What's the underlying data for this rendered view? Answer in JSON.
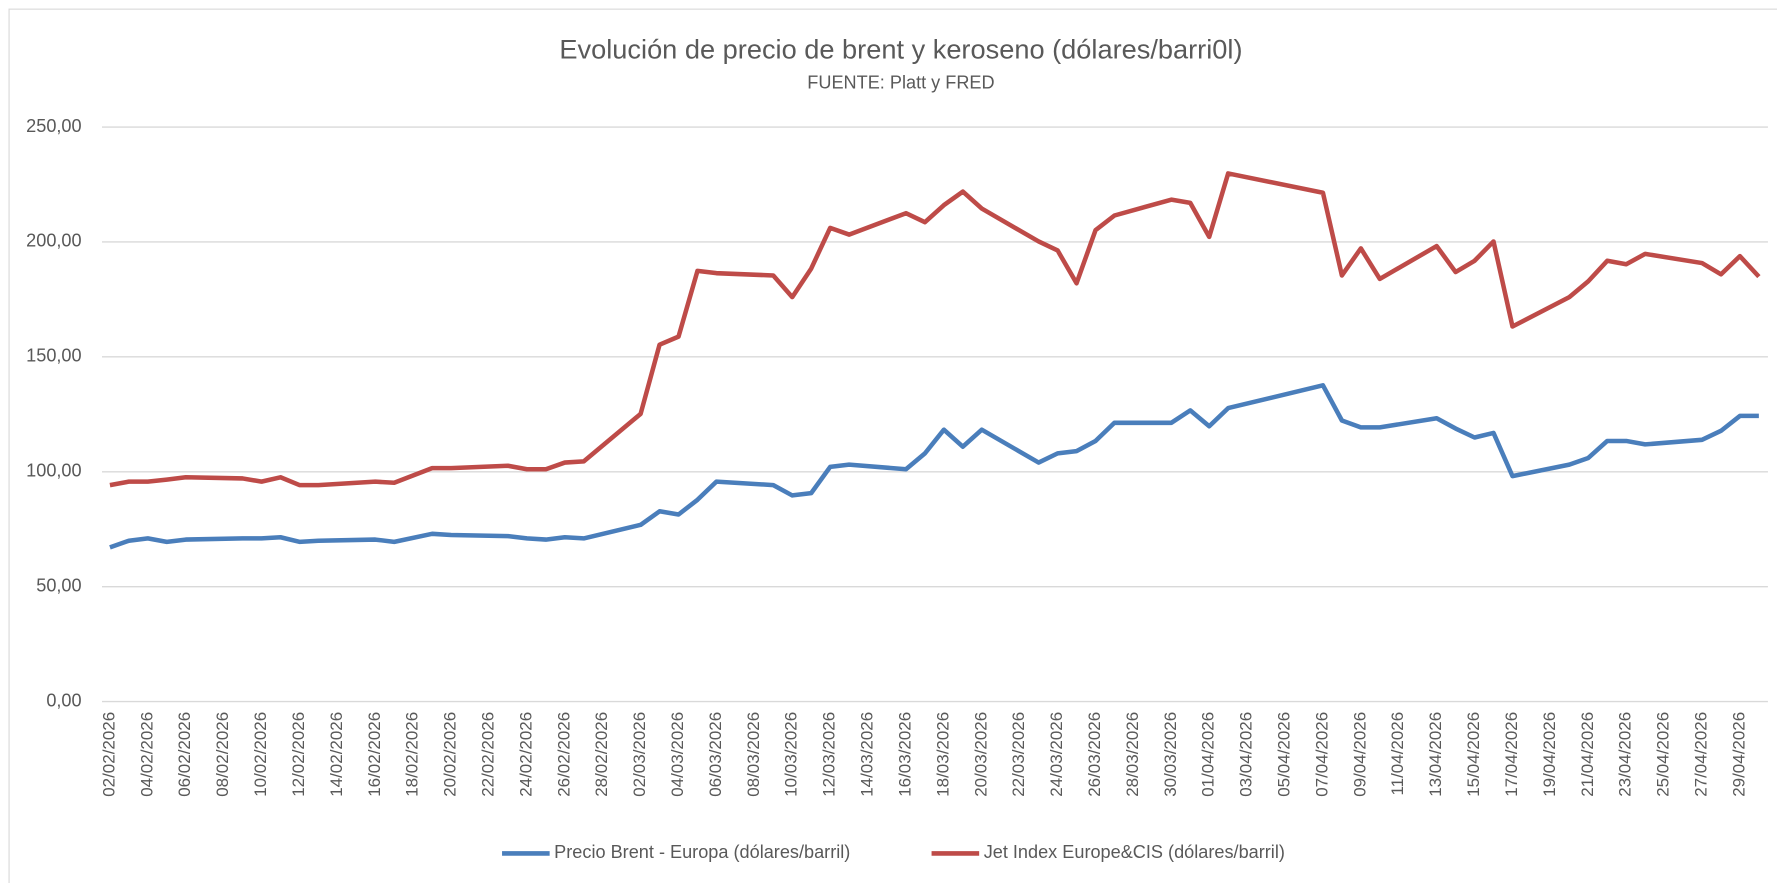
{
  "chart_data": {
    "type": "line",
    "title": "Evolución de precio de brent y keroseno (dólares/barri0l)",
    "subtitle": "FUENTE: Platt y FRED",
    "x": [
      "02/02/2026",
      "03/02/2026",
      "04/02/2026",
      "05/02/2026",
      "06/02/2026",
      "09/02/2026",
      "10/02/2026",
      "11/02/2026",
      "12/02/2026",
      "13/02/2026",
      "16/02/2026",
      "17/02/2026",
      "19/02/2026",
      "20/02/2026",
      "23/02/2026",
      "24/02/2026",
      "25/02/2026",
      "26/02/2026",
      "27/02/2026",
      "02/03/2026",
      "03/03/2026",
      "04/03/2026",
      "05/03/2026",
      "06/03/2026",
      "09/03/2026",
      "10/03/2026",
      "11/03/2026",
      "12/03/2026",
      "13/03/2026",
      "16/03/2026",
      "17/03/2026",
      "18/03/2026",
      "19/03/2026",
      "20/03/2026",
      "23/03/2026",
      "24/03/2026",
      "25/03/2026",
      "26/03/2026",
      "27/03/2026",
      "30/03/2026",
      "31/03/2026",
      "01/04/2026",
      "02/04/2026",
      "07/04/2026",
      "08/04/2026",
      "09/04/2026",
      "10/04/2026",
      "13/04/2026",
      "14/04/2026",
      "15/04/2026",
      "16/04/2026",
      "17/04/2026",
      "20/04/2026",
      "21/04/2026",
      "22/04/2026",
      "23/04/2026",
      "24/04/2026",
      "27/04/2026",
      "28/04/2026",
      "29/04/2026",
      "30/04/2026"
    ],
    "series": [
      {
        "name": "Precio Brent - Europa (dólares/barril)",
        "color": "#4a7ebb",
        "values": [
          67.1,
          70.0,
          71.0,
          69.5,
          70.5,
          71.0,
          71.0,
          71.5,
          69.5,
          70.0,
          70.5,
          69.5,
          73.0,
          72.5,
          72.0,
          71.0,
          70.5,
          71.5,
          71.0,
          76.9,
          82.8,
          81.4,
          87.8,
          95.7,
          94.2,
          89.7,
          90.7,
          102.1,
          103.1,
          101.1,
          108.0,
          118.3,
          110.9,
          118.3,
          104.0,
          108.0,
          109.0,
          113.4,
          121.3,
          121.3,
          126.7,
          119.8,
          127.7,
          137.6,
          122.3,
          119.3,
          119.3,
          123.3,
          118.8,
          114.9,
          116.9,
          98.1,
          103.1,
          106.0,
          113.4,
          113.4,
          111.9,
          113.9,
          117.8,
          124.3,
          124.3
        ]
      },
      {
        "name": "Jet Index Europe&CIS (dólares/barril)",
        "color": "#be4b48",
        "values": [
          94.2,
          95.7,
          95.7,
          96.6,
          97.6,
          97.1,
          95.7,
          97.6,
          94.2,
          94.2,
          95.7,
          95.2,
          101.6,
          101.6,
          102.6,
          101.1,
          101.1,
          104.0,
          104.5,
          125.2,
          155.3,
          158.8,
          187.4,
          186.4,
          185.4,
          176.0,
          188.4,
          206.1,
          203.2,
          212.5,
          208.6,
          216.0,
          221.9,
          214.5,
          200.2,
          196.3,
          182.0,
          205.1,
          211.5,
          218.4,
          217.0,
          202.2,
          229.8,
          221.4,
          185.4,
          197.2,
          183.9,
          198.2,
          186.9,
          191.8,
          200.2,
          163.2,
          176.0,
          182.9,
          191.8,
          190.3,
          194.8,
          190.8,
          185.9,
          193.8,
          184.9
        ]
      }
    ],
    "xticks": [
      "02/02/2026",
      "04/02/2026",
      "06/02/2026",
      "08/02/2026",
      "10/02/2026",
      "12/02/2026",
      "14/02/2026",
      "16/02/2026",
      "18/02/2026",
      "20/02/2026",
      "22/02/2026",
      "24/02/2026",
      "26/02/2026",
      "28/02/2026",
      "02/03/2026",
      "04/03/2026",
      "06/03/2026",
      "08/03/2026",
      "10/03/2026",
      "12/03/2026",
      "14/03/2026",
      "16/03/2026",
      "18/03/2026",
      "20/03/2026",
      "22/03/2026",
      "24/03/2026",
      "26/03/2026",
      "28/03/2026",
      "30/03/2026",
      "01/04/2026",
      "03/04/2026",
      "05/04/2026",
      "07/04/2026",
      "09/04/2026",
      "11/04/2026",
      "13/04/2026",
      "15/04/2026",
      "17/04/2026",
      "19/04/2026",
      "21/04/2026",
      "23/04/2026",
      "25/04/2026",
      "27/04/2026",
      "29/04/2026"
    ],
    "ylim": [
      0,
      250
    ],
    "yticks": [
      {
        "value": 0,
        "label": "0,00"
      },
      {
        "value": 50,
        "label": "50,00"
      },
      {
        "value": 100,
        "label": "100,00"
      },
      {
        "value": 150,
        "label": "150,00"
      },
      {
        "value": 200,
        "label": "200,00"
      },
      {
        "value": 250,
        "label": "250,00"
      }
    ],
    "grid": true,
    "legend": "bottom"
  }
}
